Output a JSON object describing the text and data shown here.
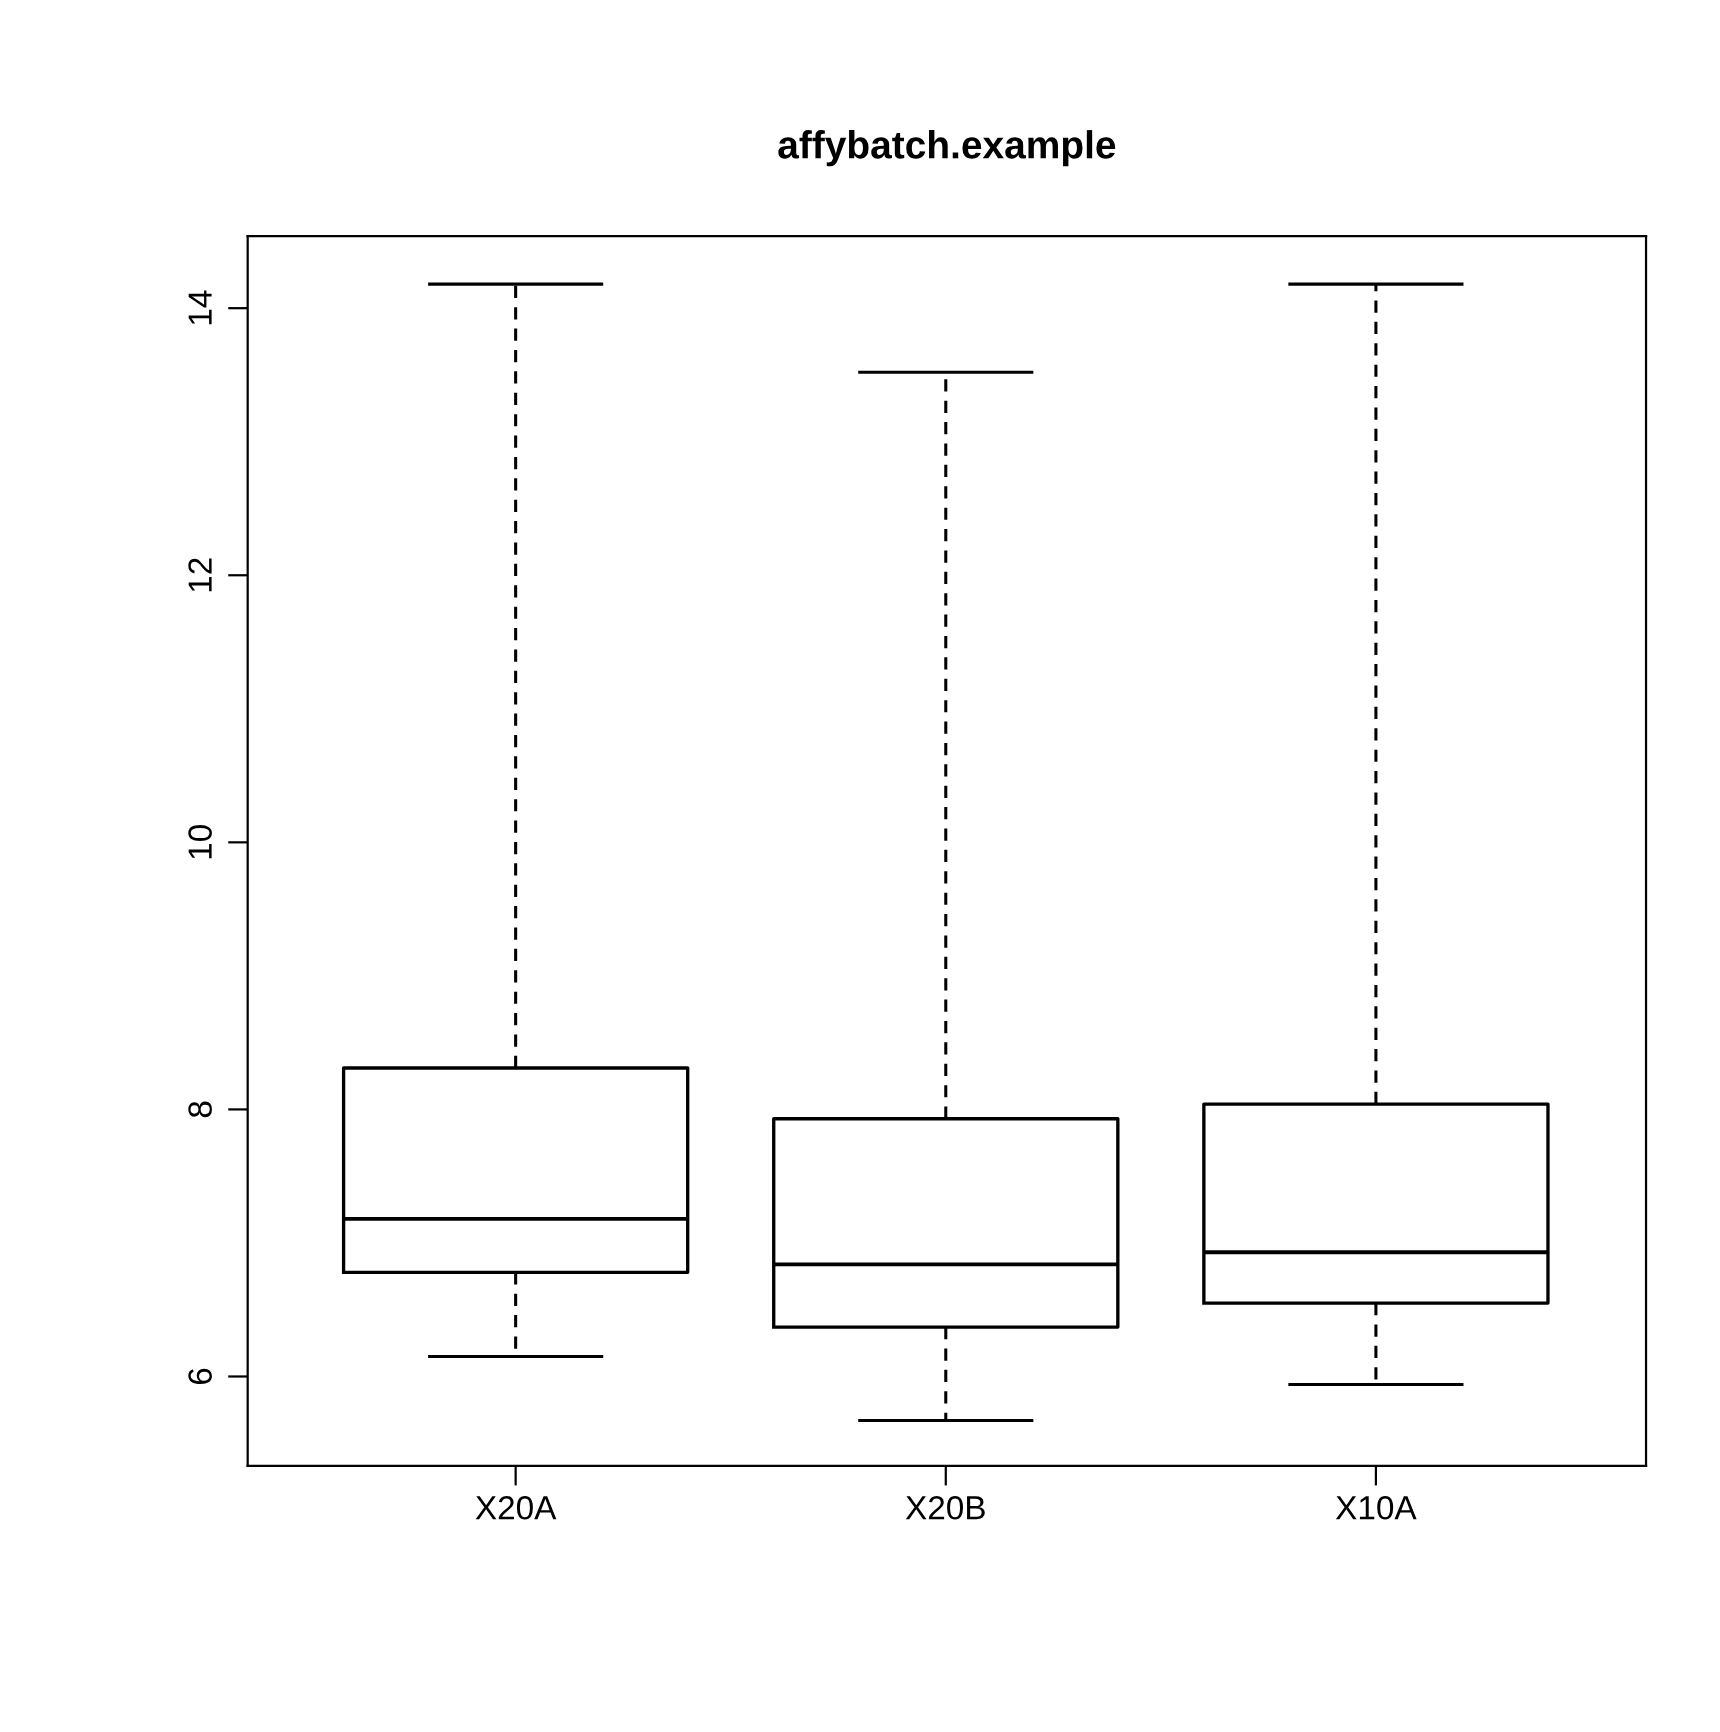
{
  "chart_data": {
    "type": "box",
    "title": "affybatch.example",
    "categories": [
      "X20A",
      "X20B",
      "X10A"
    ],
    "boxes": [
      {
        "low": 6.15,
        "q1": 6.78,
        "median": 7.18,
        "q3": 8.31,
        "high": 14.18
      },
      {
        "low": 5.67,
        "q1": 6.37,
        "median": 6.84,
        "q3": 7.93,
        "high": 13.52
      },
      {
        "low": 5.94,
        "q1": 6.55,
        "median": 6.93,
        "q3": 8.04,
        "high": 14.18
      }
    ],
    "ylim": [
      5.33,
      14.54
    ],
    "yticks": [
      6,
      8,
      10,
      12,
      14
    ],
    "grid": false
  }
}
